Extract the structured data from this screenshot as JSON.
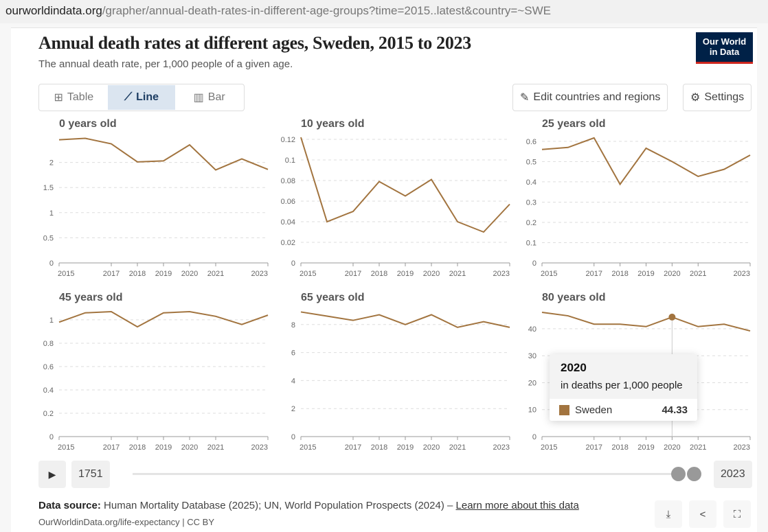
{
  "url": {
    "host": "ourworldindata.org",
    "path": "/grapher/annual-death-rates-in-different-age-groups?time=2015..latest&country=~SWE"
  },
  "header": {
    "title": "Annual death rates at different ages, Sweden, 2015 to 2023",
    "subtitle": "The annual death rate, per 1,000 people of a given age.",
    "logo_line1": "Our World",
    "logo_line2": "in Data"
  },
  "tabs": [
    {
      "label": "Table",
      "icon": "table-icon"
    },
    {
      "label": "Line",
      "icon": "line-chart-icon"
    },
    {
      "label": "Bar",
      "icon": "bar-chart-icon"
    }
  ],
  "buttons": {
    "edit": "Edit countries and regions",
    "settings": "Settings"
  },
  "tooltip": {
    "year": "2020",
    "unit": "in deaths per 1,000 people",
    "entity": "Sweden",
    "value": "44.33"
  },
  "timeline": {
    "start": "1751",
    "end": "2023"
  },
  "footer": {
    "source_label": "Data source:",
    "source_text": " Human Mortality Database (2025); UN, World Population Prospects (2024) – ",
    "learn_more": "Learn more about this data",
    "license": "OurWorldinData.org/life-expectancy | CC BY"
  },
  "colors": {
    "line": "#a2743f"
  },
  "chart_data": {
    "type": "line",
    "entity": "Sweden",
    "x": [
      2015,
      2016,
      2017,
      2018,
      2019,
      2020,
      2021,
      2022,
      2023
    ],
    "x_ticks": [
      "2015",
      "2017",
      "2018",
      "2019",
      "2020",
      "2021",
      "2023"
    ],
    "panels": [
      {
        "title": "0 years old",
        "ylim": [
          0,
          2.5
        ],
        "y_ticks": [
          "0",
          "0.5",
          "1",
          "1.5",
          "2"
        ],
        "values": [
          2.45,
          2.48,
          2.37,
          2.01,
          2.03,
          2.35,
          1.85,
          2.07,
          1.86
        ]
      },
      {
        "title": "10 years old",
        "ylim": [
          0,
          0.122
        ],
        "y_ticks": [
          "0",
          "0.02",
          "0.04",
          "0.06",
          "0.08",
          "0.1",
          "0.12"
        ],
        "values": [
          0.122,
          0.04,
          0.05,
          0.079,
          0.065,
          0.081,
          0.04,
          0.03,
          0.057
        ]
      },
      {
        "title": "25 years old",
        "ylim": [
          0,
          0.62
        ],
        "y_ticks": [
          "0",
          "0.1",
          "0.2",
          "0.3",
          "0.4",
          "0.5",
          "0.6"
        ],
        "values": [
          0.56,
          0.57,
          0.617,
          0.388,
          0.566,
          0.5,
          0.427,
          0.462,
          0.532
        ]
      },
      {
        "title": "45 years old",
        "ylim": [
          0,
          1.076
        ],
        "y_ticks": [
          "0",
          "0.2",
          "0.4",
          "0.6",
          "0.8",
          "1"
        ],
        "values": [
          0.98,
          1.06,
          1.07,
          0.94,
          1.06,
          1.07,
          1.03,
          0.96,
          1.04
        ]
      },
      {
        "title": "65 years old",
        "ylim": [
          0,
          8.97
        ],
        "y_ticks": [
          "0",
          "2",
          "4",
          "6",
          "8"
        ],
        "values": [
          8.9,
          8.6,
          8.3,
          8.7,
          8.0,
          8.7,
          7.8,
          8.2,
          7.8
        ]
      },
      {
        "title": "80 years old",
        "ylim": [
          0,
          46.6
        ],
        "y_ticks": [
          "0",
          "10",
          "20",
          "30",
          "40"
        ],
        "values": [
          46.1,
          44.8,
          41.7,
          41.7,
          40.8,
          44.33,
          40.8,
          41.7,
          39.2
        ],
        "highlight_x": 2020
      }
    ]
  }
}
